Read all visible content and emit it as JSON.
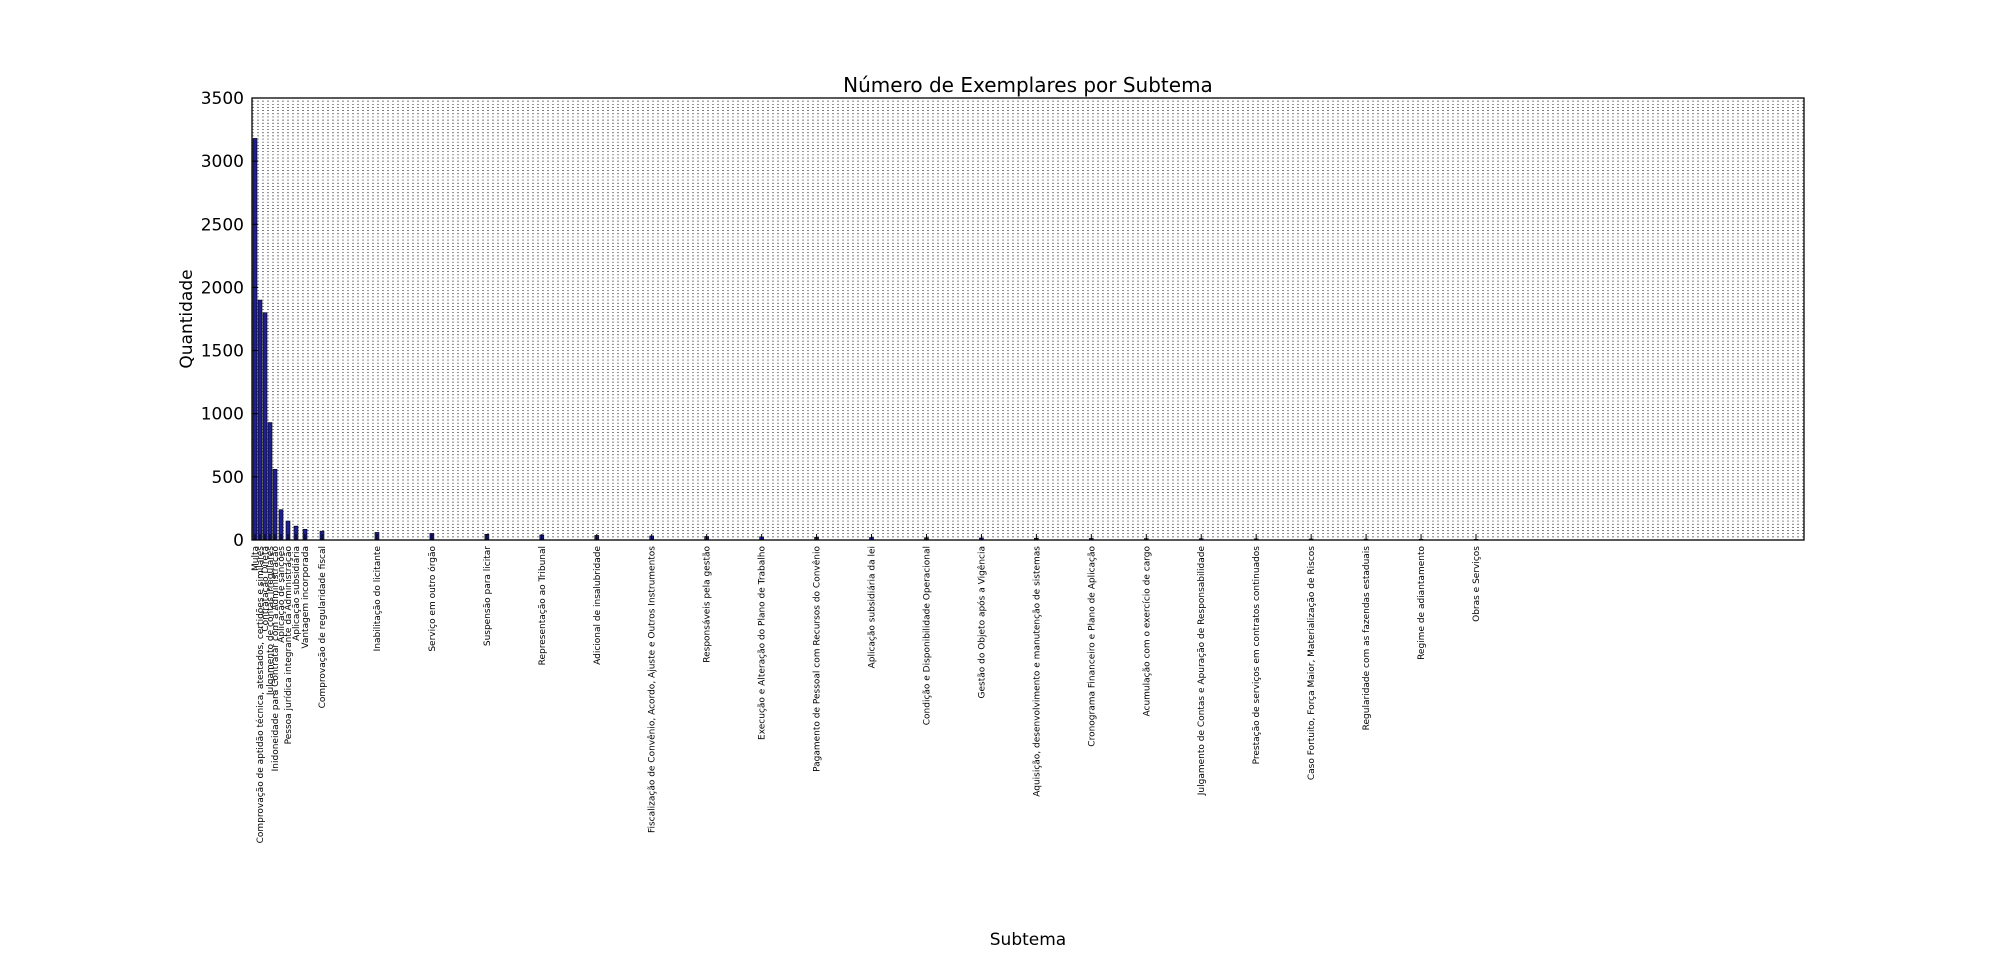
{
  "chart_data": {
    "type": "bar",
    "title": "Número de Exemplares por Subtema",
    "xlabel": "Subtema",
    "ylabel": "Quantidade",
    "ylim": [
      0,
      3500
    ],
    "yticks": [
      0,
      500,
      1000,
      1500,
      2000,
      2500,
      3000,
      3500
    ],
    "grid": true,
    "legend": "none",
    "bar_color": "#1f1f8f",
    "categories": [
      "Multa",
      "Comprovação de aptidão técnica, atestados, certidões e similares",
      "Contratação Direta",
      "Julgamento de contas irregulares",
      "Inidoneidade para Contratar com a Administração",
      "Aplicação de sanções",
      "Pessoa jurídica integrante da Administração",
      "Aplicação subsidiária",
      "Vantagem incorporada",
      "Comprovação de regularidade fiscal",
      "Inabilitação do licitante",
      "Serviço em outro órgão",
      "Suspensão para licitar",
      "Representação ao Tribunal",
      "Adicional de insalubridade",
      "Fiscalização de Convênio, Acordo, Ajuste e Outros Instrumentos",
      "Responsáveis pela gestão",
      "Execução e Alteração do Plano de Trabalho",
      "Pagamento de Pessoal com Recursos do Convênio",
      "Aplicação subsidiária da lei",
      "Condição e Disponibilidade Operacional",
      "Gestão do Objeto após a Vigência",
      "Aquisição, desenvolvimento e manutenção de sistemas",
      "Cronograma Financeiro e Plano de Aplicação",
      "Acumulação com o exercício de cargo",
      "Julgamento de Contas e Apuração de Responsabilidade",
      "Prestação de serviços em contratos continuados",
      "Caso Fortuito, Força Maior, Materialização de Riscos",
      "Regularidade com as fazendas estaduais",
      "Regime de adiantamento",
      "Obras e Serviços"
    ],
    "values": [
      3180,
      1900,
      1800,
      930,
      560,
      240,
      150,
      110,
      85,
      70,
      60,
      52,
      45,
      40,
      36,
      32,
      28,
      25,
      22,
      20,
      18,
      16,
      14,
      12,
      11,
      10,
      9,
      8,
      7,
      6,
      5
    ]
  }
}
